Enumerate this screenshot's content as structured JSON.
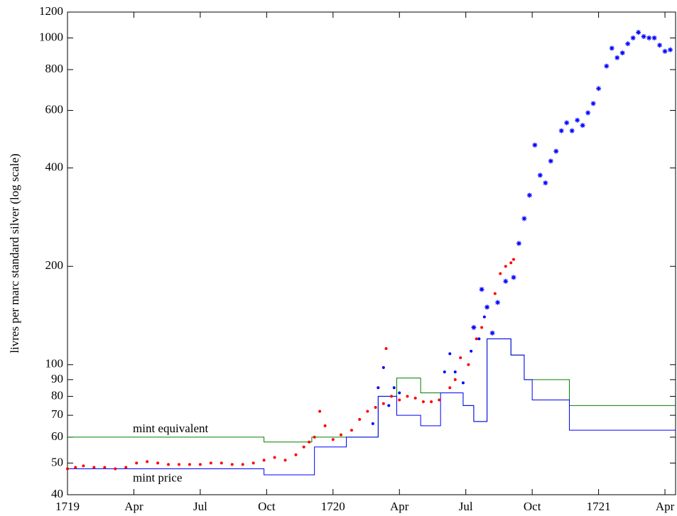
{
  "chart_data": {
    "type": "line",
    "ylabel": "livres per marc standard silver (log scale)",
    "log_y": true,
    "xlim": [
      1719,
      1721.29
    ],
    "ylim": [
      40,
      1200
    ],
    "yticks": [
      40,
      50,
      60,
      70,
      80,
      90,
      100,
      200,
      400,
      600,
      800,
      1000,
      1200
    ],
    "xticks": [
      {
        "value": 1719,
        "label": "1719"
      },
      {
        "value": 1719.25,
        "label": "Apr"
      },
      {
        "value": 1719.5,
        "label": "Jul"
      },
      {
        "value": 1719.75,
        "label": "Oct"
      },
      {
        "value": 1720,
        "label": "1720"
      },
      {
        "value": 1720.25,
        "label": "Apr"
      },
      {
        "value": 1720.5,
        "label": "Jul"
      },
      {
        "value": 1720.75,
        "label": "Oct"
      },
      {
        "value": 1721,
        "label": "1721"
      },
      {
        "value": 1721.25,
        "label": "Apr"
      }
    ],
    "series": [
      {
        "name": "mint equivalent",
        "type": "step",
        "color": "#008000",
        "x": [
          1719,
          1719.74,
          1719.92,
          1720.17,
          1720.24,
          1720.33,
          1720.49,
          1720.53,
          1720.58,
          1720.67,
          1720.72,
          1720.89,
          1721.29
        ],
        "values": [
          60,
          58,
          60,
          80,
          91,
          82,
          75,
          67,
          120,
          107,
          90,
          75,
          75
        ]
      },
      {
        "name": "mint price",
        "type": "step",
        "color": "#0000ff",
        "x": [
          1719,
          1719.74,
          1719.93,
          1720.05,
          1720.17,
          1720.24,
          1720.33,
          1720.405,
          1720.49,
          1720.53,
          1720.58,
          1720.67,
          1720.72,
          1720.75,
          1720.89,
          1721.29
        ],
        "values": [
          48,
          46,
          56,
          60,
          80,
          70,
          65,
          82,
          75,
          67,
          120,
          107,
          90,
          78,
          63,
          63
        ]
      },
      {
        "type": "scatter",
        "marker": "dot",
        "color": "#ff0000",
        "x": [
          1719.0,
          1719.03,
          1719.06,
          1719.1,
          1719.14,
          1719.18,
          1719.22,
          1719.26,
          1719.3,
          1719.34,
          1719.38,
          1719.42,
          1719.46,
          1719.5,
          1719.54,
          1719.58,
          1719.62,
          1719.66,
          1719.7,
          1719.74,
          1719.78,
          1719.82,
          1719.86,
          1719.89,
          1719.91,
          1719.93,
          1719.95,
          1719.97,
          1720.0,
          1720.03,
          1720.07,
          1720.1,
          1720.13,
          1720.16,
          1720.19,
          1720.2,
          1720.22,
          1720.25,
          1720.28,
          1720.31,
          1720.34,
          1720.37,
          1720.4,
          1720.44,
          1720.46,
          1720.48,
          1720.51,
          1720.54,
          1720.56,
          1720.58,
          1720.61,
          1720.63,
          1720.65,
          1720.67,
          1720.68
        ],
        "values": [
          48,
          48.5,
          49,
          48.5,
          48.5,
          48,
          48.5,
          50,
          50.5,
          50,
          49.5,
          49.5,
          49.5,
          49.5,
          50,
          50,
          49.5,
          49.5,
          50,
          51,
          52,
          51,
          53,
          56,
          58,
          60,
          72,
          65,
          59,
          61,
          63,
          68,
          72,
          74,
          76,
          112,
          80,
          78,
          80,
          79,
          77,
          77,
          78,
          85,
          90,
          105,
          100,
          120,
          130,
          150,
          165,
          190,
          200,
          205,
          210
        ]
      },
      {
        "type": "scatter",
        "marker": "dot",
        "color": "#0000ff",
        "x": [
          1720.15,
          1720.17,
          1720.19,
          1720.21,
          1720.23,
          1720.25,
          1720.42,
          1720.44,
          1720.46,
          1720.49,
          1720.52,
          1720.55,
          1720.57
        ],
        "values": [
          66,
          85,
          98,
          75,
          85,
          82,
          95,
          108,
          95,
          88,
          110,
          120,
          140
        ]
      },
      {
        "type": "scatter",
        "marker": "star",
        "color": "#0000ff",
        "x": [
          1720.53,
          1720.56,
          1720.58,
          1720.6,
          1720.62,
          1720.65,
          1720.68,
          1720.7,
          1720.72,
          1720.74,
          1720.76,
          1720.78,
          1720.8,
          1720.82,
          1720.84,
          1720.86,
          1720.88,
          1720.9,
          1720.92,
          1720.94,
          1720.96,
          1720.98,
          1721.0,
          1721.03,
          1721.05,
          1721.07,
          1721.09,
          1721.11,
          1721.13,
          1721.15,
          1721.17,
          1721.19,
          1721.21,
          1721.23,
          1721.25,
          1721.27
        ],
        "values": [
          130,
          170,
          150,
          125,
          155,
          180,
          185,
          235,
          280,
          330,
          470,
          380,
          360,
          420,
          450,
          520,
          550,
          520,
          560,
          540,
          590,
          630,
          700,
          820,
          930,
          870,
          900,
          960,
          1000,
          1040,
          1010,
          1000,
          1000,
          950,
          910,
          920
        ]
      }
    ]
  }
}
